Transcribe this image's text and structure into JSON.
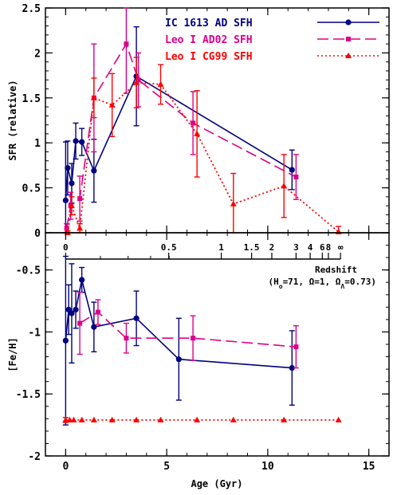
{
  "chart_data": [
    {
      "type": "line",
      "panel": "top",
      "ylabel": "SFR (relative)",
      "xlabel": "",
      "xlim": [
        -1,
        16
      ],
      "ylim": [
        0,
        2.5
      ],
      "y_ticks": [
        "0",
        "0.5",
        "1",
        "1.5",
        "2",
        "2.5"
      ],
      "grid": false,
      "legend_position": "top-right",
      "series": [
        {
          "name": "IC 1613 AD SFH",
          "color": "#000080",
          "marker": "circle",
          "linestyle": "solid",
          "x": [
            0.0,
            0.1,
            0.3,
            0.5,
            0.8,
            1.4,
            3.5,
            11.2
          ],
          "y": [
            0.36,
            0.72,
            0.55,
            1.02,
            1.01,
            0.69,
            1.74,
            0.7
          ],
          "err": [
            0.65,
            0.3,
            0.22,
            0.2,
            0.15,
            0.35,
            0.55,
            0.22
          ]
        },
        {
          "name": "Leo I AD02 SFH",
          "color": "#dd0088",
          "marker": "square",
          "linestyle": "dashed",
          "x": [
            0.05,
            0.25,
            0.7,
            1.4,
            3.0,
            3.6,
            6.3,
            11.4
          ],
          "y": [
            0.05,
            0.3,
            0.38,
            1.5,
            2.1,
            1.7,
            1.22,
            0.62
          ],
          "err": [
            0.05,
            0.15,
            0.25,
            0.6,
            0.55,
            0.3,
            0.35,
            0.25
          ]
        },
        {
          "name": "Leo I CG99 SFH",
          "color": "#ff0000",
          "marker": "triangle",
          "linestyle": "dotted",
          "x": [
            0.1,
            0.3,
            0.7,
            1.4,
            2.3,
            3.5,
            4.7,
            6.5,
            8.3,
            10.8,
            13.5
          ],
          "y": [
            0.0,
            0.3,
            0.05,
            1.5,
            1.42,
            1.67,
            1.65,
            1.1,
            0.32,
            0.52,
            0.01
          ],
          "err": [
            0.02,
            0.1,
            0.05,
            0.22,
            0.35,
            0.28,
            0.22,
            0.48,
            0.34,
            0.35,
            0.06
          ]
        }
      ]
    },
    {
      "type": "line",
      "panel": "bottom",
      "ylabel": "[Fe/H]",
      "xlabel": "Age (Gyr)",
      "xlim": [
        -1,
        16
      ],
      "ylim": [
        -2,
        -0.2
      ],
      "x_ticks": [
        "0",
        "5",
        "10",
        "15"
      ],
      "y_ticks": [
        "-0.5",
        "-1",
        "-1.5",
        "-2"
      ],
      "grid": false,
      "series": [
        {
          "name": "IC 1613 AD SFH",
          "color": "#000080",
          "marker": "circle",
          "linestyle": "solid",
          "x": [
            0.0,
            0.15,
            0.3,
            0.5,
            0.8,
            1.4,
            3.5,
            5.6,
            11.2
          ],
          "y": [
            -1.07,
            -0.82,
            -0.85,
            -0.82,
            -0.58,
            -0.96,
            -0.89,
            -1.22,
            -1.29
          ],
          "err": [
            0.68,
            0.2,
            0.4,
            0.15,
            0.1,
            0.2,
            0.22,
            0.33,
            0.3
          ]
        },
        {
          "name": "Leo I AD02 SFH",
          "color": "#dd0088",
          "marker": "square",
          "linestyle": "dashed",
          "x": [
            0.7,
            1.6,
            3.0,
            6.3,
            11.4
          ],
          "y": [
            -0.93,
            -0.84,
            -1.05,
            -1.05,
            -1.12
          ],
          "err": [
            0.25,
            0.1,
            0.12,
            0.18,
            0.17
          ]
        },
        {
          "name": "Leo I CG99 SFH",
          "color": "#ff0000",
          "marker": "triangle",
          "linestyle": "dotted",
          "x": [
            0.0,
            0.2,
            0.4,
            0.8,
            1.4,
            2.3,
            3.5,
            4.7,
            6.5,
            8.3,
            10.8,
            13.5
          ],
          "y": [
            -1.71,
            -1.71,
            -1.71,
            -1.71,
            -1.71,
            -1.71,
            -1.71,
            -1.71,
            -1.71,
            -1.71,
            -1.71,
            -1.71
          ],
          "err": [
            0.02,
            0.0,
            0.0,
            0.0,
            0.0,
            0.0,
            0.0,
            0.0,
            0.0,
            0.0,
            0.0,
            0.0
          ]
        }
      ]
    }
  ],
  "redshift_axis": {
    "title": "Redshift",
    "params": "(H₀=71, Ω=1, ΩΛ=0.73)",
    "params_parts": [
      "(H",
      "o",
      "=71, Ω=1, Ω",
      "Λ",
      "=0.73)"
    ],
    "ticks": [
      {
        "label": "0",
        "age": 0.0
      },
      {
        "label": "0.5",
        "age": 5.1
      },
      {
        "label": "1",
        "age": 7.7
      },
      {
        "label": "1.5",
        "age": 9.2
      },
      {
        "label": "2",
        "age": 10.2
      },
      {
        "label": "3",
        "age": 11.4
      },
      {
        "label": "4",
        "age": 12.1
      },
      {
        "label": "6",
        "age": 12.7
      },
      {
        "label": "8",
        "age": 13.0
      },
      {
        "label": "∞",
        "age": 13.6
      }
    ]
  }
}
